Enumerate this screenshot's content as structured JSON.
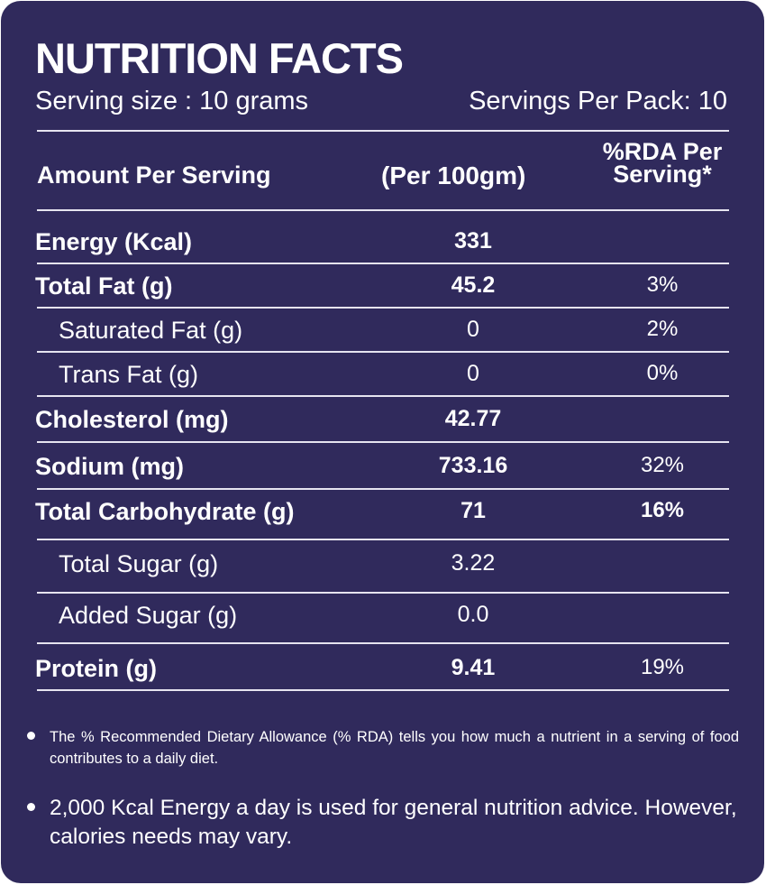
{
  "label": {
    "title": "NUTRITION FACTS",
    "serving_size": "Serving size : 10 grams",
    "servings_per_pack": "Servings Per Pack: 10",
    "columns": {
      "amount": "Amount Per Serving",
      "per100": "(Per 100gm)",
      "rda_line1": "%RDA Per",
      "rda_line2": "Serving*"
    },
    "rows": [
      {
        "name": "Energy (Kcal)",
        "value": "331",
        "rda": ""
      },
      {
        "name": "Total Fat (g)",
        "value": "45.2",
        "rda": "3%"
      },
      {
        "name": "Saturated Fat (g)",
        "value": "0",
        "rda": "2%"
      },
      {
        "name": "Trans Fat (g)",
        "value": "0",
        "rda": "0%"
      },
      {
        "name": "Cholesterol (mg)",
        "value": "42.77",
        "rda": ""
      },
      {
        "name": "Sodium  (mg)",
        "value": "733.16",
        "rda": "32%"
      },
      {
        "name": "Total Carbohydrate (g)",
        "value": "71",
        "rda": "16%"
      },
      {
        "name": "Total Sugar (g)",
        "value": "3.22",
        "rda": ""
      },
      {
        "name": "Added Sugar (g)",
        "value": "0.0",
        "rda": ""
      },
      {
        "name": "Protein (g)",
        "value": "9.41",
        "rda": "19%"
      }
    ],
    "notes": [
      "The % Recommended Dietary Allowance (% RDA) tells you how much a nutrient in a serving of food contributes to a daily diet.",
      "2,000 Kcal Energy a day is used for general nutrition advice. However, calories needs may vary."
    ],
    "colors": {
      "background": "#302a5c",
      "text": "#ffffff"
    }
  }
}
